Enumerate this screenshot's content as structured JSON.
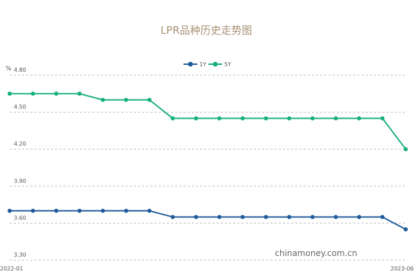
{
  "chart_data": {
    "type": "line",
    "title": "LPR品种历史走势图",
    "ylabel": "%",
    "ylim": [
      3.3,
      4.8
    ],
    "yticks": [
      "4.80",
      "4.50",
      "4.20",
      "3.90",
      "3.60",
      "3.30"
    ],
    "x_start_label": "2022-01",
    "x_end_label": "2023-06",
    "grid": true,
    "legend_position": "top-center",
    "series": [
      {
        "name": "1Y",
        "color": "#1f5b99",
        "values": [
          3.7,
          3.7,
          3.7,
          3.7,
          3.7,
          3.7,
          3.7,
          3.65,
          3.65,
          3.65,
          3.65,
          3.65,
          3.65,
          3.65,
          3.65,
          3.65,
          3.65,
          3.55
        ]
      },
      {
        "name": "5Y",
        "color": "#19b07a",
        "values": [
          4.65,
          4.65,
          4.65,
          4.65,
          4.6,
          4.6,
          4.6,
          4.45,
          4.45,
          4.45,
          4.45,
          4.45,
          4.45,
          4.45,
          4.45,
          4.45,
          4.45,
          4.2
        ]
      }
    ]
  },
  "watermark": "chinamoney.com.cn"
}
